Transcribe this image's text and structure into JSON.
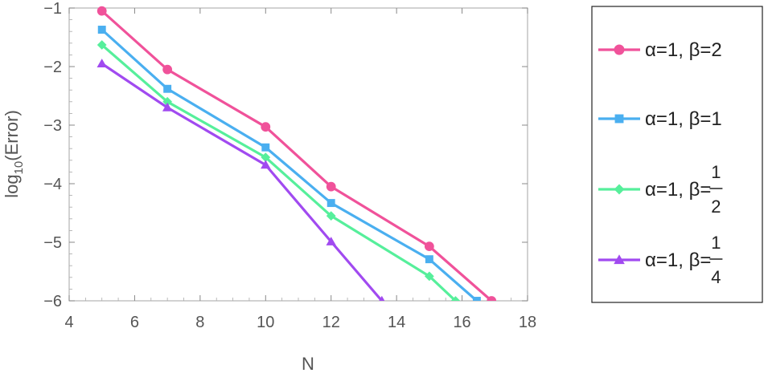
{
  "chart_data": {
    "type": "line",
    "title": "",
    "xlabel": "N",
    "ylabel_base": "log",
    "ylabel_sub": "10",
    "ylabel_rest": "(Error)",
    "xlim": [
      4,
      18
    ],
    "ylim": [
      -6,
      -1
    ],
    "xticks": [
      4,
      6,
      8,
      10,
      12,
      14,
      16,
      18
    ],
    "yticks": [
      -6,
      -5,
      -4,
      -3,
      -2,
      -1
    ],
    "xtick_labels": [
      "4",
      "6",
      "8",
      "10",
      "12",
      "14",
      "16",
      "18"
    ],
    "ytick_labels": [
      "−6",
      "−5",
      "−4",
      "−3",
      "−2",
      "−1"
    ],
    "grid": false,
    "legend_position": "right",
    "series": [
      {
        "legend_prefix": "α=1, β=",
        "legend_value": "2",
        "color": "#f0529a",
        "marker": "circle",
        "x": [
          5,
          7,
          10,
          12,
          15,
          16.9
        ],
        "y": [
          -1.05,
          -2.05,
          -3.03,
          -4.05,
          -5.07,
          -6.0
        ]
      },
      {
        "legend_prefix": "α=1, β=",
        "legend_value": "1",
        "color": "#4aaff0",
        "marker": "square",
        "x": [
          5,
          7,
          10,
          12,
          15,
          16.45
        ],
        "y": [
          -1.37,
          -2.38,
          -3.38,
          -4.33,
          -5.29,
          -6.0
        ]
      },
      {
        "legend_prefix": "α=1, β=",
        "legend_num": "1",
        "legend_den": "2",
        "color": "#56ef9b",
        "marker": "diamond",
        "x": [
          5,
          7,
          10,
          12,
          15,
          15.8
        ],
        "y": [
          -1.63,
          -2.6,
          -3.55,
          -4.55,
          -5.58,
          -6.0
        ]
      },
      {
        "legend_prefix": "α=1, β=",
        "legend_num": "1",
        "legend_den": "4",
        "color": "#a14af0",
        "marker": "triangle",
        "x": [
          5,
          7,
          10,
          12,
          13.55
        ],
        "y": [
          -1.95,
          -2.7,
          -3.68,
          -4.99,
          -6.0
        ]
      }
    ]
  }
}
